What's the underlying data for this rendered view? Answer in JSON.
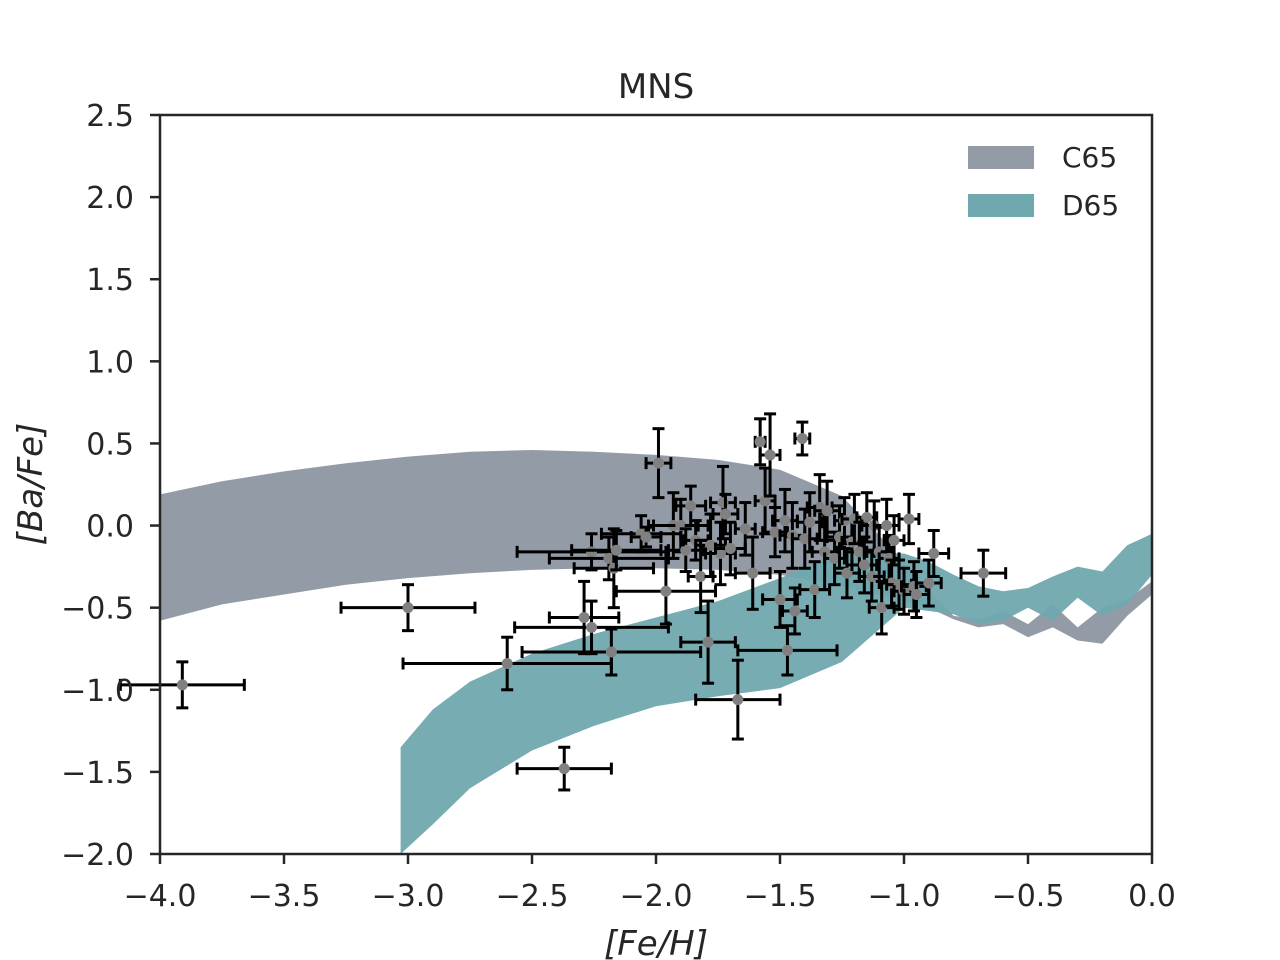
{
  "chart_data": {
    "type": "scatter",
    "title": "MNS",
    "xlabel": "[Fe/H]",
    "ylabel": "[Ba/Fe]",
    "xlim": [
      -4.0,
      0.0
    ],
    "ylim": [
      -2.0,
      2.5
    ],
    "xticks": [
      -4.0,
      -3.5,
      -3.0,
      -2.5,
      -2.0,
      -1.5,
      -1.0,
      -0.5,
      0.0
    ],
    "xtick_labels": [
      "−4.0",
      "−3.5",
      "−3.0",
      "−2.5",
      "−2.0",
      "−1.5",
      "−1.0",
      "−0.5",
      "0.0"
    ],
    "yticks": [
      -2.0,
      -1.5,
      -1.0,
      -0.5,
      0.0,
      0.5,
      1.0,
      1.5,
      2.0,
      2.5
    ],
    "ytick_labels": [
      "−2.0",
      "−1.5",
      "−1.0",
      "−0.5",
      "0.0",
      "0.5",
      "1.0",
      "1.5",
      "2.0",
      "2.5"
    ],
    "grid": false,
    "legend_position": "top-right",
    "bands": [
      {
        "name": "C65",
        "color": "#939ca6",
        "x": [
          -4.0,
          -3.75,
          -3.5,
          -3.25,
          -3.0,
          -2.75,
          -2.5,
          -2.25,
          -2.0,
          -1.75,
          -1.5,
          -1.25,
          -1.0,
          -0.9,
          -0.8,
          -0.7,
          -0.6,
          -0.5,
          -0.4,
          -0.3,
          -0.2,
          -0.1,
          0.0
        ],
        "upper": [
          0.19,
          0.27,
          0.33,
          0.38,
          0.42,
          0.45,
          0.46,
          0.45,
          0.43,
          0.4,
          0.34,
          0.18,
          -0.22,
          -0.4,
          -0.55,
          -0.57,
          -0.52,
          -0.6,
          -0.48,
          -0.62,
          -0.5,
          -0.45,
          -0.34
        ],
        "lower": [
          -0.58,
          -0.48,
          -0.42,
          -0.36,
          -0.32,
          -0.29,
          -0.27,
          -0.26,
          -0.26,
          -0.27,
          -0.3,
          -0.37,
          -0.46,
          -0.5,
          -0.57,
          -0.62,
          -0.6,
          -0.68,
          -0.62,
          -0.7,
          -0.72,
          -0.55,
          -0.42
        ]
      },
      {
        "name": "D65",
        "color": "#6fa8ae",
        "x": [
          -3.03,
          -2.9,
          -2.75,
          -2.5,
          -2.25,
          -2.0,
          -1.75,
          -1.5,
          -1.25,
          -1.0,
          -0.9,
          -0.8,
          -0.7,
          -0.6,
          -0.5,
          -0.4,
          -0.3,
          -0.2,
          -0.1,
          0.0
        ],
        "upper": [
          -1.35,
          -1.12,
          -0.95,
          -0.78,
          -0.66,
          -0.56,
          -0.46,
          -0.32,
          -0.17,
          -0.17,
          -0.22,
          -0.3,
          -0.37,
          -0.4,
          -0.38,
          -0.31,
          -0.25,
          -0.28,
          -0.12,
          -0.05
        ],
        "lower": [
          -2.0,
          -1.82,
          -1.6,
          -1.37,
          -1.22,
          -1.1,
          -1.04,
          -0.99,
          -0.83,
          -0.5,
          -0.52,
          -0.54,
          -0.6,
          -0.58,
          -0.5,
          -0.58,
          -0.44,
          -0.55,
          -0.48,
          -0.3
        ]
      }
    ],
    "points": [
      {
        "x": -3.91,
        "y": -0.97,
        "xerr": 0.25,
        "yerr": 0.14
      },
      {
        "x": -3.0,
        "y": -0.5,
        "xerr": 0.27,
        "yerr": 0.14
      },
      {
        "x": -2.37,
        "y": -1.48,
        "xerr": 0.19,
        "yerr": 0.13
      },
      {
        "x": -2.6,
        "y": -0.84,
        "xerr": 0.42,
        "yerr": 0.16
      },
      {
        "x": -2.18,
        "y": -0.77,
        "xerr": 0.36,
        "yerr": 0.14
      },
      {
        "x": -2.29,
        "y": -0.56,
        "xerr": 0.14,
        "yerr": 0.22
      },
      {
        "x": -2.26,
        "y": -0.62,
        "xerr": 0.31,
        "yerr": 0.16
      },
      {
        "x": -2.26,
        "y": -0.16,
        "xerr": 0.3,
        "yerr": 0.11
      },
      {
        "x": -2.19,
        "y": -0.2,
        "xerr": 0.24,
        "yerr": 0.13
      },
      {
        "x": -2.17,
        "y": -0.26,
        "xerr": 0.16,
        "yerr": 0.24
      },
      {
        "x": -2.16,
        "y": -0.15,
        "xerr": 0.18,
        "yerr": 0.12
      },
      {
        "x": -2.06,
        "y": -0.05,
        "xerr": 0.16,
        "yerr": 0.11
      },
      {
        "x": -2.04,
        "y": -0.07,
        "xerr": 0.06,
        "yerr": 0.06
      },
      {
        "x": -1.99,
        "y": 0.38,
        "xerr": 0.05,
        "yerr": 0.21
      },
      {
        "x": -1.96,
        "y": -0.4,
        "xerr": 0.2,
        "yerr": 0.2
      },
      {
        "x": -1.93,
        "y": -0.0,
        "xerr": 0.1,
        "yerr": 0.2
      },
      {
        "x": -1.9,
        "y": -0.0,
        "xerr": 0.11,
        "yerr": 0.16
      },
      {
        "x": -1.88,
        "y": -0.15,
        "xerr": 0.07,
        "yerr": 0.13
      },
      {
        "x": -1.86,
        "y": 0.12,
        "xerr": 0.06,
        "yerr": 0.12
      },
      {
        "x": -1.84,
        "y": -0.09,
        "xerr": 0.05,
        "yerr": 0.12
      },
      {
        "x": -1.82,
        "y": -0.31,
        "xerr": 0.05,
        "yerr": 0.22
      },
      {
        "x": -1.79,
        "y": -0.71,
        "xerr": 0.11,
        "yerr": 0.25
      },
      {
        "x": -1.78,
        "y": -0.12,
        "xerr": 0.06,
        "yerr": 0.19
      },
      {
        "x": -1.74,
        "y": -0.17,
        "xerr": 0.06,
        "yerr": 0.19
      },
      {
        "x": -1.73,
        "y": 0.14,
        "xerr": 0.05,
        "yerr": 0.22
      },
      {
        "x": -1.72,
        "y": 0.07,
        "xerr": 0.05,
        "yerr": 0.12
      },
      {
        "x": -1.7,
        "y": -0.14,
        "xerr": 0.06,
        "yerr": 0.16
      },
      {
        "x": -1.67,
        "y": -1.06,
        "xerr": 0.17,
        "yerr": 0.24
      },
      {
        "x": -1.64,
        "y": -0.02,
        "xerr": 0.04,
        "yerr": 0.16
      },
      {
        "x": -1.61,
        "y": -0.29,
        "xerr": 0.07,
        "yerr": 0.22
      },
      {
        "x": -1.58,
        "y": 0.51,
        "xerr": 0.02,
        "yerr": 0.14
      },
      {
        "x": -1.56,
        "y": 0.15,
        "xerr": 0.04,
        "yerr": 0.2
      },
      {
        "x": -1.54,
        "y": 0.43,
        "xerr": 0.04,
        "yerr": 0.25
      },
      {
        "x": -1.52,
        "y": -0.04,
        "xerr": 0.05,
        "yerr": 0.15
      },
      {
        "x": -1.5,
        "y": -0.45,
        "xerr": 0.07,
        "yerr": 0.17
      },
      {
        "x": -1.48,
        "y": 0.03,
        "xerr": 0.05,
        "yerr": 0.19
      },
      {
        "x": -1.47,
        "y": -0.76,
        "xerr": 0.2,
        "yerr": 0.15
      },
      {
        "x": -1.45,
        "y": -0.06,
        "xerr": 0.05,
        "yerr": 0.2
      },
      {
        "x": -1.44,
        "y": -0.52,
        "xerr": 0.05,
        "yerr": 0.14
      },
      {
        "x": -1.41,
        "y": 0.53,
        "xerr": 0.03,
        "yerr": 0.1
      },
      {
        "x": -1.4,
        "y": -0.08,
        "xerr": 0.05,
        "yerr": 0.18
      },
      {
        "x": -1.38,
        "y": 0.02,
        "xerr": 0.05,
        "yerr": 0.18
      },
      {
        "x": -1.36,
        "y": -0.39,
        "xerr": 0.06,
        "yerr": 0.17
      },
      {
        "x": -1.34,
        "y": 0.11,
        "xerr": 0.05,
        "yerr": 0.2
      },
      {
        "x": -1.32,
        "y": -0.16,
        "xerr": 0.05,
        "yerr": 0.23
      },
      {
        "x": -1.31,
        "y": 0.09,
        "xerr": 0.05,
        "yerr": 0.18
      },
      {
        "x": -1.28,
        "y": -0.2,
        "xerr": 0.04,
        "yerr": 0.16
      },
      {
        "x": -1.26,
        "y": -0.07,
        "xerr": 0.05,
        "yerr": 0.19
      },
      {
        "x": -1.24,
        "y": 0.03,
        "xerr": 0.04,
        "yerr": 0.14
      },
      {
        "x": -1.23,
        "y": -0.29,
        "xerr": 0.05,
        "yerr": 0.15
      },
      {
        "x": -1.21,
        "y": -0.1,
        "xerr": 0.04,
        "yerr": 0.14
      },
      {
        "x": -1.2,
        "y": 0.04,
        "xerr": 0.05,
        "yerr": 0.15
      },
      {
        "x": -1.18,
        "y": -0.16,
        "xerr": 0.06,
        "yerr": 0.18
      },
      {
        "x": -1.16,
        "y": -0.24,
        "xerr": 0.05,
        "yerr": 0.17
      },
      {
        "x": -1.15,
        "y": 0.05,
        "xerr": 0.04,
        "yerr": 0.15
      },
      {
        "x": -1.13,
        "y": -0.31,
        "xerr": 0.05,
        "yerr": 0.15
      },
      {
        "x": -1.12,
        "y": 0.0,
        "xerr": 0.05,
        "yerr": 0.15
      },
      {
        "x": -1.1,
        "y": -0.16,
        "xerr": 0.05,
        "yerr": 0.15
      },
      {
        "x": -1.09,
        "y": -0.5,
        "xerr": 0.05,
        "yerr": 0.16
      },
      {
        "x": -1.07,
        "y": 0.0,
        "xerr": 0.05,
        "yerr": 0.16
      },
      {
        "x": -1.06,
        "y": -0.2,
        "xerr": 0.04,
        "yerr": 0.14
      },
      {
        "x": -1.05,
        "y": -0.35,
        "xerr": 0.05,
        "yerr": 0.14
      },
      {
        "x": -1.04,
        "y": -0.09,
        "xerr": 0.04,
        "yerr": 0.15
      },
      {
        "x": -1.02,
        "y": -0.36,
        "xerr": 0.05,
        "yerr": 0.15
      },
      {
        "x": -1.0,
        "y": -0.4,
        "xerr": 0.04,
        "yerr": 0.14
      },
      {
        "x": -0.98,
        "y": 0.04,
        "xerr": 0.04,
        "yerr": 0.15
      },
      {
        "x": -0.96,
        "y": -0.37,
        "xerr": 0.05,
        "yerr": 0.15
      },
      {
        "x": -0.95,
        "y": -0.42,
        "xerr": 0.05,
        "yerr": 0.14
      },
      {
        "x": -0.9,
        "y": -0.35,
        "xerr": 0.05,
        "yerr": 0.14
      },
      {
        "x": -0.88,
        "y": -0.17,
        "xerr": 0.06,
        "yerr": 0.14
      },
      {
        "x": -0.68,
        "y": -0.29,
        "xerr": 0.09,
        "yerr": 0.14
      }
    ]
  }
}
